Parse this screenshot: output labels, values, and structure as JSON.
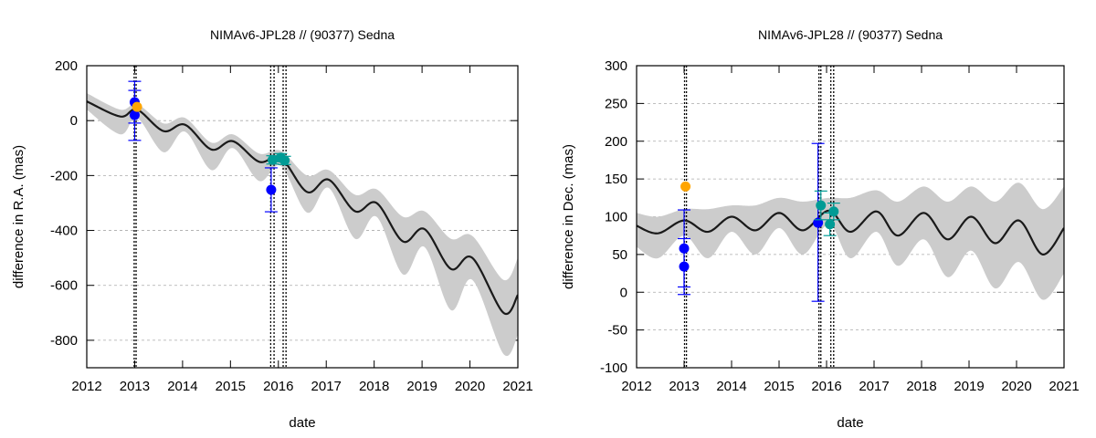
{
  "chart_data": [
    {
      "type": "line",
      "title": "NIMAv6-JPL28 // (90377) Sedna",
      "xlabel": "date",
      "ylabel": "difference in R.A. (mas)",
      "xlim": [
        2012,
        2021
      ],
      "ylim": [
        -900,
        200
      ],
      "xticks": [
        "2012",
        "2013",
        "2014",
        "2015",
        "2016",
        "2017",
        "2018",
        "2019",
        "2020",
        "2021"
      ],
      "yticks": [
        "200",
        "0",
        "-200",
        "-400",
        "-600",
        "-800"
      ],
      "ytick_values": [
        200,
        0,
        -200,
        -400,
        -600,
        -800
      ],
      "grid": true,
      "colors": {
        "model": "#1a1a1a",
        "band": "#cccccc",
        "blue": "#0000ff",
        "orange": "#ffa500",
        "teal": "#009b95"
      },
      "model": {
        "x": [
          2012.0,
          2012.7,
          2013.05,
          2013.6,
          2014.05,
          2014.6,
          2015.05,
          2015.6,
          2016.05,
          2016.6,
          2017.05,
          2017.6,
          2018.05,
          2018.6,
          2019.05,
          2019.6,
          2020.05,
          2020.7,
          2021.0
        ],
        "mean": [
          70,
          15,
          40,
          -38,
          -15,
          -105,
          -75,
          -150,
          -135,
          -260,
          -215,
          -330,
          -300,
          -440,
          -395,
          -540,
          -500,
          -700,
          -635
        ],
        "band_low": [
          40,
          -50,
          10,
          -115,
          -40,
          -180,
          -100,
          -220,
          -165,
          -335,
          -245,
          -430,
          -350,
          -560,
          -460,
          -690,
          -580,
          -850,
          -780
        ],
        "band_high": [
          100,
          40,
          60,
          -10,
          10,
          -80,
          -50,
          -120,
          -110,
          -200,
          -180,
          -270,
          -250,
          -350,
          -330,
          -430,
          -420,
          -580,
          -500
        ]
      },
      "vlines": [
        2012.99,
        2013.03,
        2015.84,
        2015.91,
        2016.1,
        2016.16
      ],
      "points": [
        {
          "x": 2013.0,
          "y": 67,
          "err_low": -9,
          "err_high": 143,
          "color": "blue"
        },
        {
          "x": 2013.0,
          "y": 20,
          "err_low": -72,
          "err_high": 110,
          "color": "blue"
        },
        {
          "x": 2013.05,
          "y": 50,
          "color": "orange"
        },
        {
          "x": 2015.85,
          "y": -252,
          "err_low": -332,
          "err_high": -172,
          "color": "blue"
        },
        {
          "x": 2015.88,
          "y": -143,
          "err_low": -158,
          "err_high": -128,
          "color": "teal"
        },
        {
          "x": 2016.05,
          "y": -135,
          "err_low": -150,
          "err_high": -120,
          "color": "teal"
        },
        {
          "x": 2016.13,
          "y": -145,
          "err_low": -160,
          "err_high": -130,
          "color": "teal"
        }
      ]
    },
    {
      "type": "line",
      "title": "NIMAv6-JPL28 // (90377) Sedna",
      "xlabel": "date",
      "ylabel": "difference in Dec. (mas)",
      "xlim": [
        2012,
        2021
      ],
      "ylim": [
        -100,
        300
      ],
      "xticks": [
        "2012",
        "2013",
        "2014",
        "2015",
        "2016",
        "2017",
        "2018",
        "2019",
        "2020",
        "2021"
      ],
      "yticks": [
        "300",
        "250",
        "200",
        "150",
        "100",
        "50",
        "0",
        "-50",
        "-100"
      ],
      "ytick_values": [
        300,
        250,
        200,
        150,
        100,
        50,
        0,
        -50,
        -100
      ],
      "grid": true,
      "colors": {
        "model": "#1a1a1a",
        "band": "#cccccc",
        "blue": "#0000ff",
        "orange": "#ffa500",
        "teal": "#009b95"
      },
      "model": {
        "x": [
          2012.0,
          2012.45,
          2013.0,
          2013.5,
          2014.0,
          2014.5,
          2015.0,
          2015.5,
          2016.05,
          2016.5,
          2017.05,
          2017.5,
          2018.05,
          2018.55,
          2019.05,
          2019.55,
          2020.05,
          2020.55,
          2021.0
        ],
        "mean": [
          88,
          78,
          95,
          80,
          100,
          82,
          105,
          82,
          108,
          80,
          107,
          75,
          105,
          70,
          100,
          65,
          95,
          50,
          85
        ],
        "band_low": [
          60,
          45,
          75,
          45,
          80,
          50,
          85,
          50,
          90,
          45,
          80,
          35,
          70,
          20,
          55,
          5,
          40,
          -10,
          25
        ],
        "band_high": [
          105,
          100,
          110,
          110,
          115,
          115,
          125,
          120,
          125,
          125,
          135,
          120,
          140,
          120,
          140,
          120,
          145,
          110,
          140
        ]
      },
      "vlines": [
        2013.01,
        2013.05,
        2015.84,
        2015.88,
        2016.09,
        2016.15
      ],
      "points": [
        {
          "x": 2013.0,
          "y": 58,
          "err_low": 7,
          "err_high": 109,
          "color": "blue"
        },
        {
          "x": 2013.0,
          "y": 34,
          "err_low": -3,
          "err_high": 71,
          "color": "blue"
        },
        {
          "x": 2013.03,
          "y": 140,
          "color": "orange"
        },
        {
          "x": 2015.82,
          "y": 92,
          "err_low": -12,
          "err_high": 197,
          "color": "blue"
        },
        {
          "x": 2015.88,
          "y": 115,
          "err_low": 96,
          "err_high": 134,
          "color": "teal"
        },
        {
          "x": 2016.07,
          "y": 90,
          "err_low": 75,
          "err_high": 105,
          "color": "teal"
        },
        {
          "x": 2016.15,
          "y": 107,
          "err_low": 96,
          "err_high": 118,
          "color": "teal"
        }
      ]
    }
  ]
}
